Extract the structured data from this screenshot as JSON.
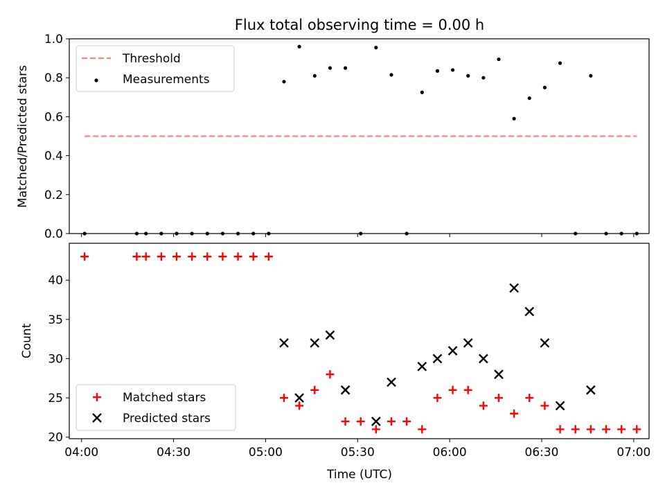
{
  "chart_data": [
    {
      "type": "scatter",
      "title": "Flux total observing time = 0.00 h",
      "xlabel": "",
      "ylabel": "Matched/Predicted stars",
      "xlim": [
        "03:56",
        "07:05"
      ],
      "ylim": [
        0.0,
        1.0
      ],
      "xticks": [
        "04:00",
        "04:30",
        "05:00",
        "05:30",
        "06:00",
        "06:30",
        "07:00"
      ],
      "yticks": [
        "0.0",
        "0.2",
        "0.4",
        "0.6",
        "0.8",
        "1.0"
      ],
      "legend": {
        "placement": "upper-left",
        "entries": [
          "Threshold",
          "Measurements"
        ]
      },
      "series": [
        {
          "name": "Threshold",
          "kind": "line",
          "style": "dashed",
          "color": "#ff7f7f",
          "points": [
            [
              "04:01",
              0.5
            ],
            [
              "07:01",
              0.5
            ]
          ]
        },
        {
          "name": "Measurements",
          "kind": "scatter",
          "color": "#000000",
          "points": [
            [
              "04:01",
              0.0
            ],
            [
              "04:18",
              0.0
            ],
            [
              "04:21",
              0.0
            ],
            [
              "04:26",
              0.0
            ],
            [
              "04:31",
              0.0
            ],
            [
              "04:36",
              0.0
            ],
            [
              "04:41",
              0.0
            ],
            [
              "04:46",
              0.0
            ],
            [
              "04:51",
              0.0
            ],
            [
              "04:56",
              0.0
            ],
            [
              "05:01",
              0.0
            ],
            [
              "05:06",
              0.78
            ],
            [
              "05:11",
              0.96
            ],
            [
              "05:16",
              0.81
            ],
            [
              "05:21",
              0.85
            ],
            [
              "05:26",
              0.85
            ],
            [
              "05:31",
              0.0
            ],
            [
              "05:36",
              0.955
            ],
            [
              "05:41",
              0.815
            ],
            [
              "05:46",
              0.0
            ],
            [
              "05:51",
              0.725
            ],
            [
              "05:56",
              0.835
            ],
            [
              "06:01",
              0.84
            ],
            [
              "06:06",
              0.81
            ],
            [
              "06:11",
              0.8
            ],
            [
              "06:16",
              0.895
            ],
            [
              "06:21",
              0.59
            ],
            [
              "06:26",
              0.695
            ],
            [
              "06:31",
              0.75
            ],
            [
              "06:36",
              0.875
            ],
            [
              "06:41",
              0.0
            ],
            [
              "06:46",
              0.81
            ],
            [
              "06:51",
              0.0
            ],
            [
              "06:56",
              0.0
            ],
            [
              "07:01",
              0.0
            ]
          ]
        }
      ]
    },
    {
      "type": "scatter",
      "title": "",
      "xlabel": "Time (UTC)",
      "ylabel": "Count",
      "xlim": [
        "03:56",
        "07:05"
      ],
      "ylim": [
        19.8,
        44.7
      ],
      "xticks": [
        "04:00",
        "04:30",
        "05:00",
        "05:30",
        "06:00",
        "06:30",
        "07:00"
      ],
      "yticks": [
        "20",
        "25",
        "30",
        "35",
        "40"
      ],
      "legend": {
        "placement": "lower-left",
        "entries": [
          "Matched stars",
          "Predicted stars"
        ]
      },
      "series": [
        {
          "name": "Matched stars",
          "marker": "plus",
          "color": "#ff0000",
          "points": [
            [
              "04:01",
              43
            ],
            [
              "04:18",
              43
            ],
            [
              "04:21",
              43
            ],
            [
              "04:26",
              43
            ],
            [
              "04:31",
              43
            ],
            [
              "04:36",
              43
            ],
            [
              "04:41",
              43
            ],
            [
              "04:46",
              43
            ],
            [
              "04:51",
              43
            ],
            [
              "04:56",
              43
            ],
            [
              "05:01",
              43
            ],
            [
              "05:06",
              25
            ],
            [
              "05:11",
              24
            ],
            [
              "05:16",
              26
            ],
            [
              "05:21",
              28
            ],
            [
              "05:26",
              22
            ],
            [
              "05:31",
              22
            ],
            [
              "05:36",
              21
            ],
            [
              "05:41",
              22
            ],
            [
              "05:46",
              22
            ],
            [
              "05:51",
              21
            ],
            [
              "05:56",
              25
            ],
            [
              "06:01",
              26
            ],
            [
              "06:06",
              26
            ],
            [
              "06:11",
              24
            ],
            [
              "06:16",
              25
            ],
            [
              "06:21",
              23
            ],
            [
              "06:26",
              25
            ],
            [
              "06:31",
              24
            ],
            [
              "06:36",
              21
            ],
            [
              "06:41",
              21
            ],
            [
              "06:46",
              21
            ],
            [
              "06:51",
              21
            ],
            [
              "06:56",
              21
            ],
            [
              "07:01",
              21
            ]
          ]
        },
        {
          "name": "Predicted stars",
          "marker": "x",
          "color": "#000000",
          "points": [
            [
              "05:06",
              32
            ],
            [
              "05:11",
              25
            ],
            [
              "05:16",
              32
            ],
            [
              "05:21",
              33
            ],
            [
              "05:26",
              26
            ],
            [
              "05:36",
              22
            ],
            [
              "05:41",
              27
            ],
            [
              "05:51",
              29
            ],
            [
              "05:56",
              30
            ],
            [
              "06:01",
              31
            ],
            [
              "06:06",
              32
            ],
            [
              "06:11",
              30
            ],
            [
              "06:16",
              28
            ],
            [
              "06:21",
              39
            ],
            [
              "06:26",
              36
            ],
            [
              "06:31",
              32
            ],
            [
              "06:36",
              24
            ],
            [
              "06:46",
              26
            ]
          ]
        }
      ]
    }
  ]
}
